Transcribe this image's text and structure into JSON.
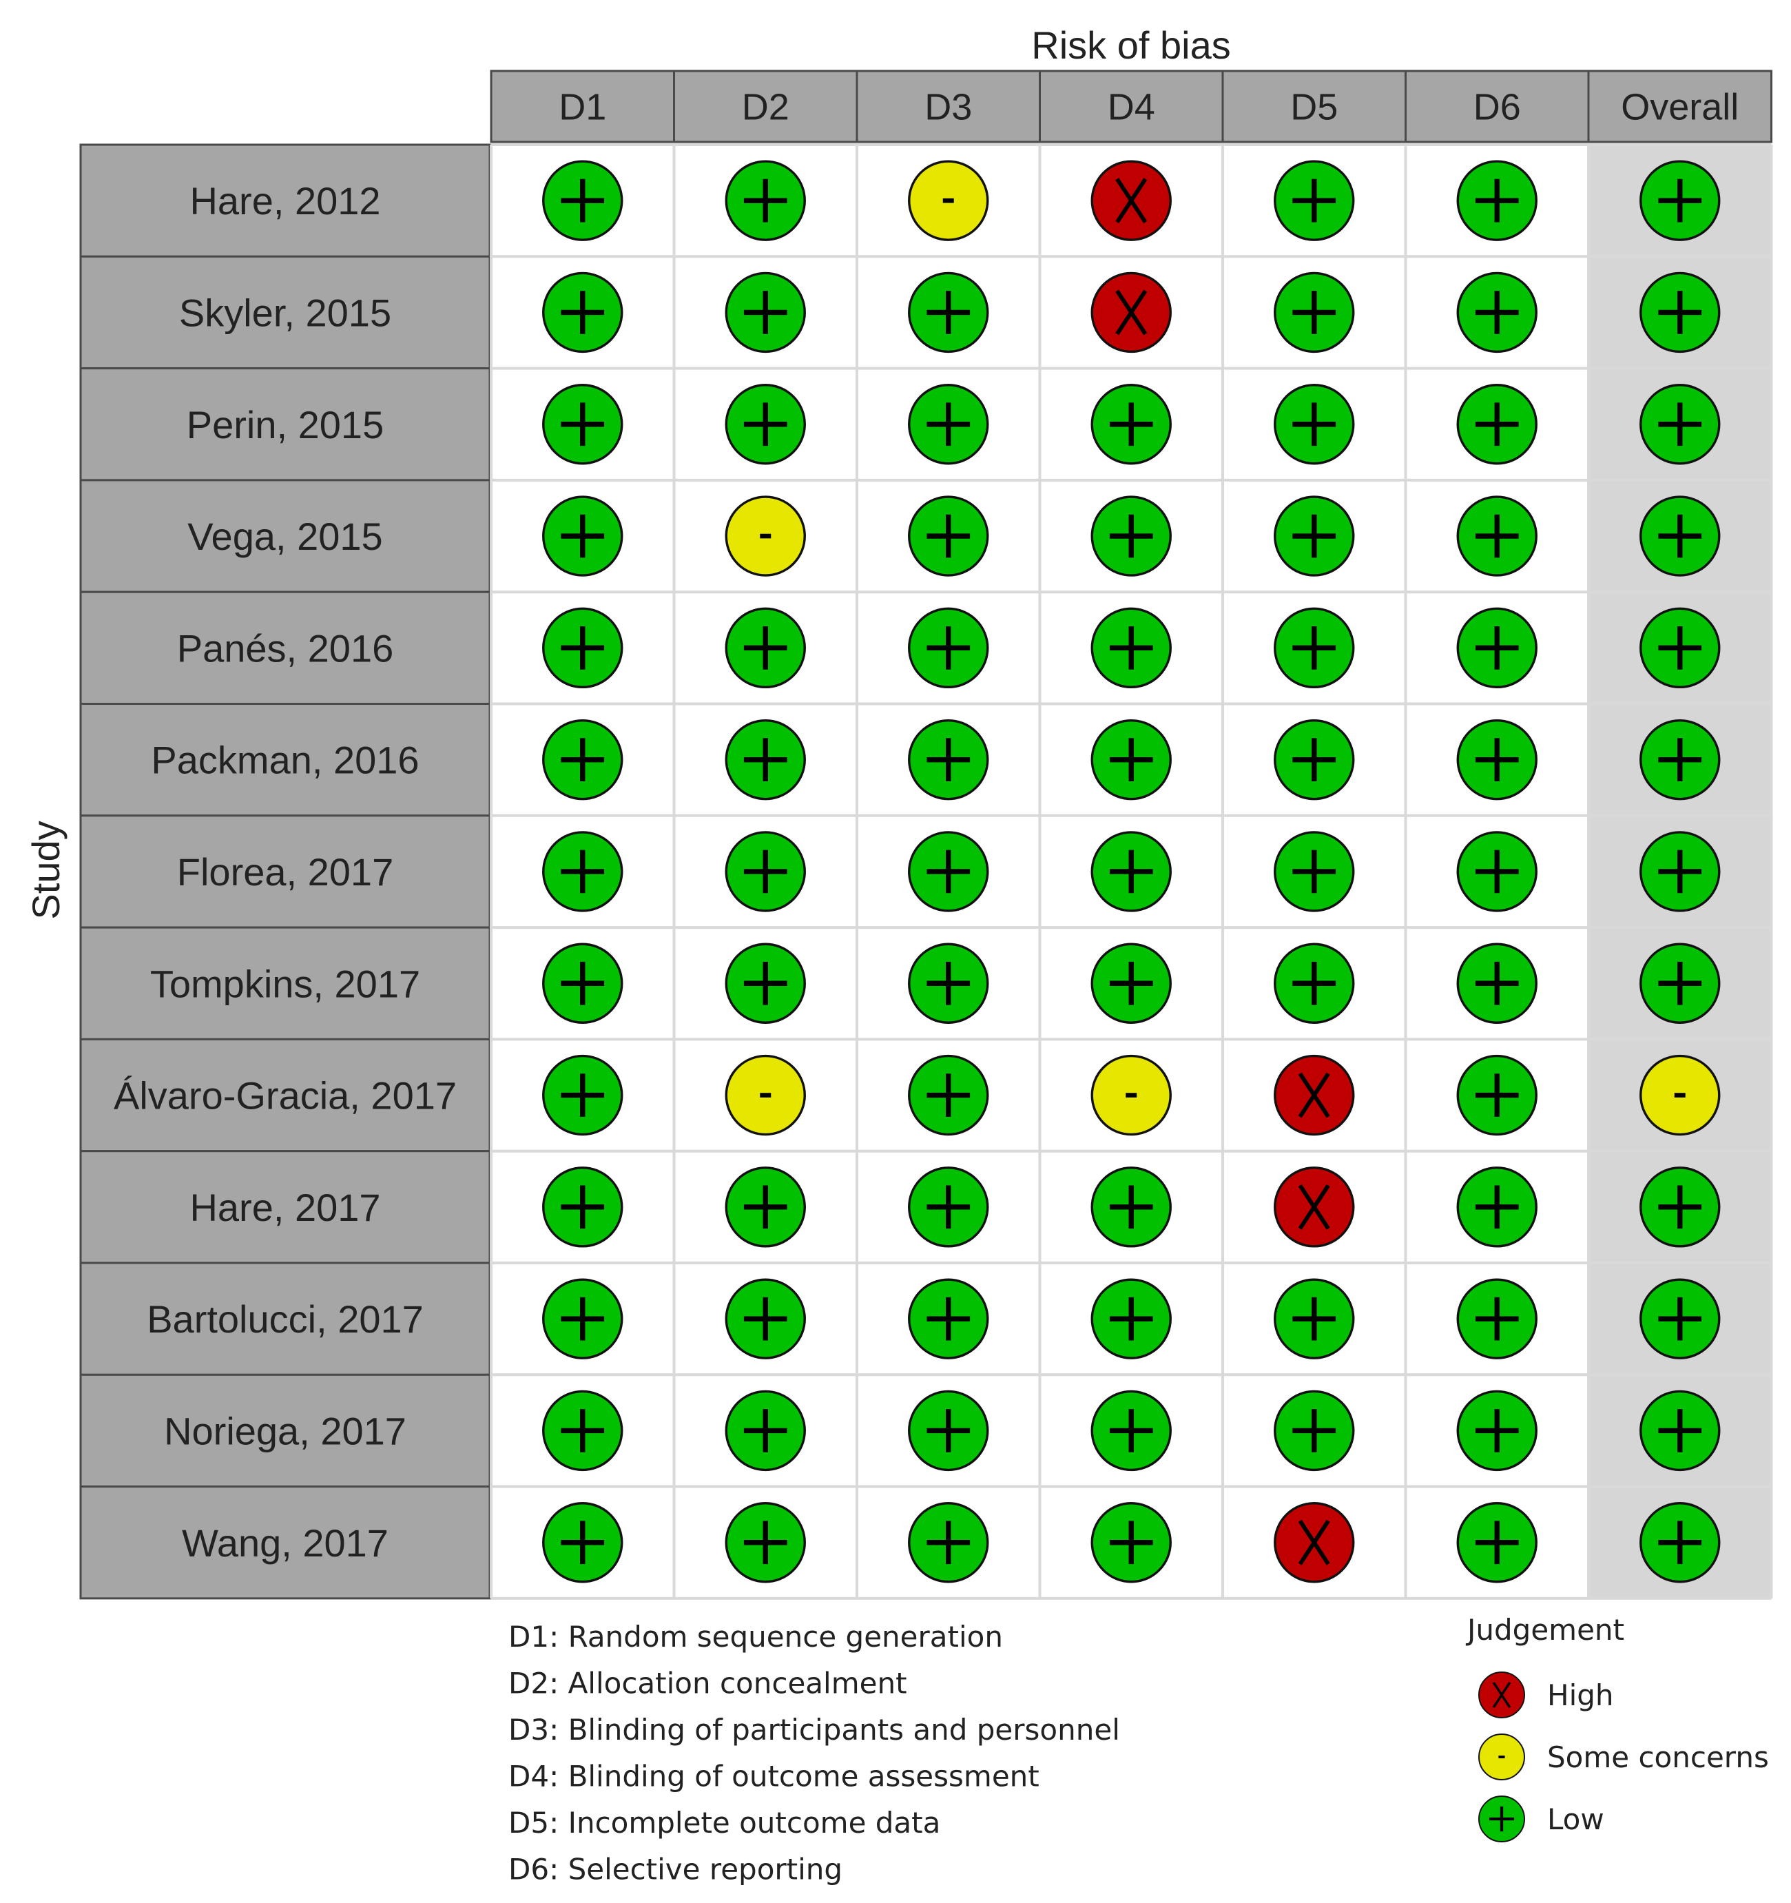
{
  "chart_data": {
    "type": "table",
    "title": "Risk of bias",
    "ylabel": "Study",
    "columns": [
      "D1",
      "D2",
      "D3",
      "D4",
      "D5",
      "D6",
      "Overall"
    ],
    "studies": [
      {
        "name": "Hare, 2012",
        "judgements": [
          "+",
          "+",
          "-",
          "X",
          "+",
          "+",
          "+"
        ]
      },
      {
        "name": "Skyler, 2015",
        "judgements": [
          "+",
          "+",
          "+",
          "X",
          "+",
          "+",
          "+"
        ]
      },
      {
        "name": "Perin, 2015",
        "judgements": [
          "+",
          "+",
          "+",
          "+",
          "+",
          "+",
          "+"
        ]
      },
      {
        "name": "Vega, 2015",
        "judgements": [
          "+",
          "-",
          "+",
          "+",
          "+",
          "+",
          "+"
        ]
      },
      {
        "name": "Panés, 2016",
        "judgements": [
          "+",
          "+",
          "+",
          "+",
          "+",
          "+",
          "+"
        ]
      },
      {
        "name": "Packman, 2016",
        "judgements": [
          "+",
          "+",
          "+",
          "+",
          "+",
          "+",
          "+"
        ]
      },
      {
        "name": "Florea, 2017",
        "judgements": [
          "+",
          "+",
          "+",
          "+",
          "+",
          "+",
          "+"
        ]
      },
      {
        "name": "Tompkins, 2017",
        "judgements": [
          "+",
          "+",
          "+",
          "+",
          "+",
          "+",
          "+"
        ]
      },
      {
        "name": "Álvaro-Gracia, 2017",
        "judgements": [
          "+",
          "-",
          "+",
          "-",
          "X",
          "+",
          "-"
        ]
      },
      {
        "name": "Hare, 2017",
        "judgements": [
          "+",
          "+",
          "+",
          "+",
          "X",
          "+",
          "+"
        ]
      },
      {
        "name": "Bartolucci, 2017",
        "judgements": [
          "+",
          "+",
          "+",
          "+",
          "+",
          "+",
          "+"
        ]
      },
      {
        "name": "Noriega, 2017",
        "judgements": [
          "+",
          "+",
          "+",
          "+",
          "+",
          "+",
          "+"
        ]
      },
      {
        "name": "Wang, 2017",
        "judgements": [
          "+",
          "+",
          "+",
          "+",
          "X",
          "+",
          "+"
        ]
      }
    ],
    "domain_definitions": [
      "D1: Random sequence generation",
      "D2: Allocation concealment",
      "D3: Blinding of participants and personnel",
      "D4: Blinding of outcome assessment",
      "D5: Incomplete outcome data",
      "D6: Selective reporting"
    ],
    "legend": {
      "title": "Judgement",
      "items": [
        {
          "symbol": "X",
          "label": "High",
          "color": "#c00000"
        },
        {
          "symbol": "-",
          "label": "Some concerns",
          "color": "#e6e600"
        },
        {
          "symbol": "+",
          "label": "Low",
          "color": "#00c000"
        }
      ]
    }
  }
}
